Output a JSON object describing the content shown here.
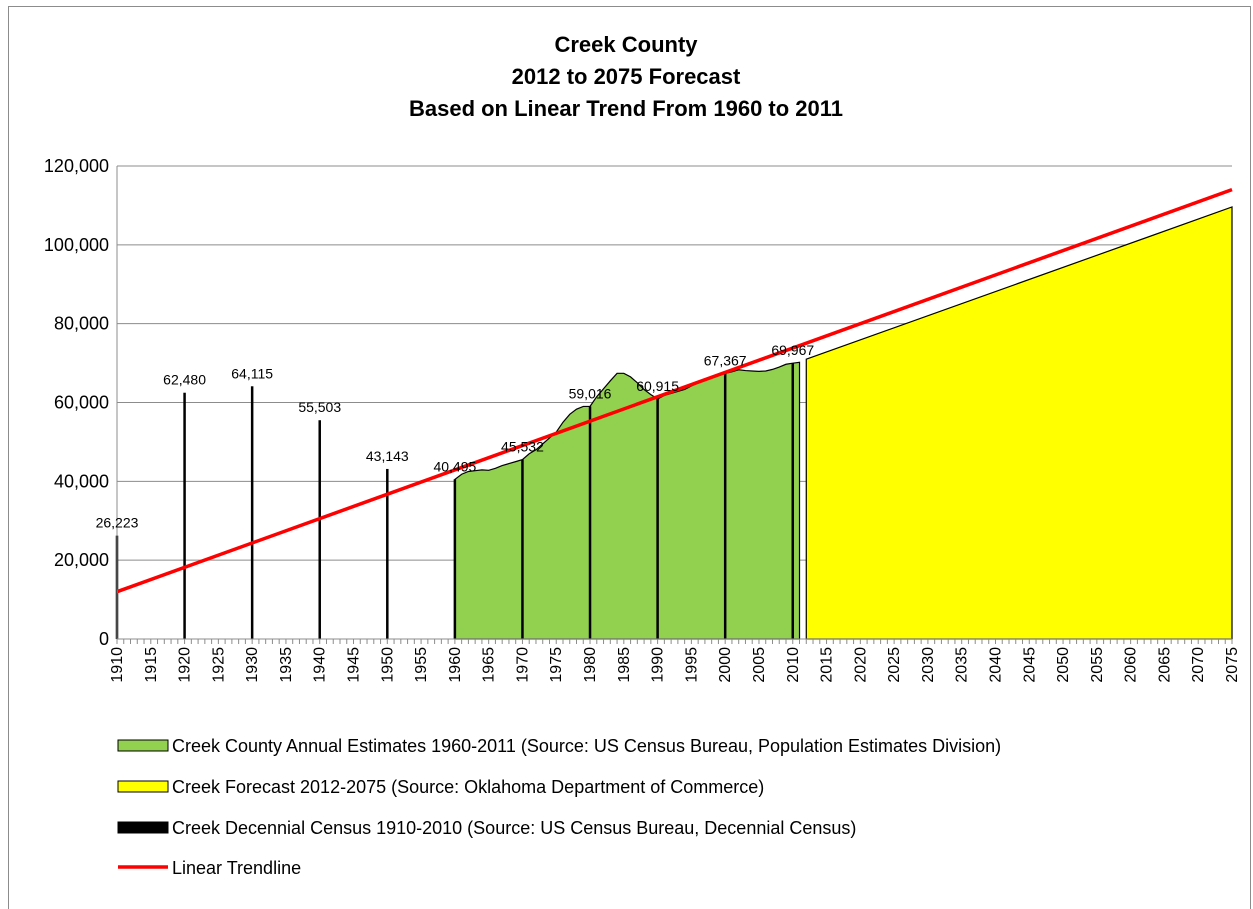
{
  "chart_data": {
    "type": "area",
    "title": [
      "Creek County",
      "2012 to 2075 Forecast",
      "Based on Linear Trend From 1960 to 2011"
    ],
    "xlabel": "",
    "ylabel": "",
    "xlim": [
      1910,
      2075
    ],
    "ylim": [
      0,
      120000
    ],
    "y_ticks": [
      "0",
      "20,000",
      "40,000",
      "60,000",
      "80,000",
      "100,000",
      "120,000"
    ],
    "y_tick_values": [
      0,
      20000,
      40000,
      60000,
      80000,
      100000,
      120000
    ],
    "x_ticks": [
      "1910",
      "1915",
      "1920",
      "1925",
      "1930",
      "1935",
      "1940",
      "1945",
      "1950",
      "1955",
      "1960",
      "1965",
      "1970",
      "1975",
      "1980",
      "1985",
      "1990",
      "1995",
      "2000",
      "2005",
      "2010",
      "2015",
      "2020",
      "2025",
      "2030",
      "2035",
      "2040",
      "2045",
      "2050",
      "2055",
      "2060",
      "2065",
      "2070",
      "2075"
    ],
    "grid": "horizontal",
    "legend_position": "bottom",
    "colors": {
      "annual": "#92D050",
      "forecast": "#FFFF00",
      "census": "#000000",
      "trend": "#FF0000",
      "grid": "#8c8c8c"
    },
    "series": [
      {
        "name": "Creek County Annual Estimates 1960-2011 (Source: US Census Bureau, Population Estimates Division)",
        "type": "area",
        "x": [
          1960,
          1961,
          1962,
          1963,
          1964,
          1965,
          1966,
          1967,
          1968,
          1969,
          1970,
          1971,
          1972,
          1973,
          1974,
          1975,
          1976,
          1977,
          1978,
          1979,
          1980,
          1981,
          1982,
          1983,
          1984,
          1985,
          1986,
          1987,
          1988,
          1989,
          1990,
          1991,
          1992,
          1993,
          1994,
          1995,
          1996,
          1997,
          1998,
          1999,
          2000,
          2001,
          2002,
          2003,
          2004,
          2005,
          2006,
          2007,
          2008,
          2009,
          2010,
          2011
        ],
        "values": [
          40495,
          41800,
          42500,
          42700,
          42900,
          42800,
          43300,
          44000,
          44500,
          45000,
          45532,
          47000,
          48000,
          49500,
          51000,
          52500,
          55000,
          57000,
          58300,
          59000,
          59016,
          61500,
          63500,
          65500,
          67400,
          67400,
          66500,
          65000,
          63300,
          62000,
          60915,
          61800,
          62300,
          62800,
          63300,
          64200,
          65000,
          65800,
          66400,
          66900,
          67367,
          67800,
          68300,
          68100,
          68000,
          67900,
          68000,
          68400,
          69000,
          69700,
          69967,
          70200
        ]
      },
      {
        "name": "Creek Forecast 2012-2075 (Source: Oklahoma Department of Commerce)",
        "type": "area",
        "x": [
          2012,
          2075
        ],
        "values": [
          71000,
          109600
        ]
      },
      {
        "name": "Creek Decennial Census 1910-2010 (Source: US Census Bureau, Decennial Census)",
        "type": "bar",
        "x": [
          1910,
          1920,
          1930,
          1940,
          1950,
          1960,
          1970,
          1980,
          1990,
          2000,
          2010
        ],
        "values": [
          26223,
          62480,
          64115,
          55503,
          43143,
          40495,
          45532,
          59016,
          60915,
          67367,
          69967
        ]
      },
      {
        "name": "Linear Trendline",
        "type": "line",
        "x": [
          1910,
          2075
        ],
        "values": [
          12000,
          114000
        ]
      }
    ],
    "data_labels": [
      {
        "x": 1910,
        "text": "26,223"
      },
      {
        "x": 1920,
        "text": "62,480"
      },
      {
        "x": 1930,
        "text": "64,115"
      },
      {
        "x": 1940,
        "text": "55,503"
      },
      {
        "x": 1950,
        "text": "43,143"
      },
      {
        "x": 1960,
        "text": "40,495"
      },
      {
        "x": 1970,
        "text": "45,532"
      },
      {
        "x": 1980,
        "text": "59,016"
      },
      {
        "x": 1990,
        "text": "60,915"
      },
      {
        "x": 2000,
        "text": "67,367"
      },
      {
        "x": 2010,
        "text": "69,967"
      }
    ]
  }
}
